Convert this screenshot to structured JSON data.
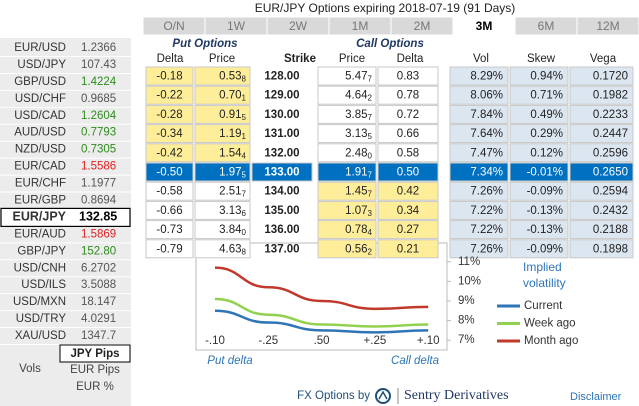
{
  "title": "EUR/JPY Options expiring 2018-07-19 (91 Days)",
  "tabs": [
    "O/N",
    "1W",
    "2W",
    "1M",
    "2M",
    "3M",
    "6M",
    "12M"
  ],
  "selected_tab": 5,
  "pairs": [
    {
      "name": "EUR/USD",
      "rate": "1.2366",
      "color": "#555555"
    },
    {
      "name": "USD/JPY",
      "rate": "107.43",
      "color": "#555555"
    },
    {
      "name": "GBP/USD",
      "rate": "1.4224",
      "color": "#2e8b1e"
    },
    {
      "name": "USD/CHF",
      "rate": "0.9685",
      "color": "#555555"
    },
    {
      "name": "USD/CAD",
      "rate": "1.2604",
      "color": "#2e8b1e"
    },
    {
      "name": "AUD/USD",
      "rate": "0.7793",
      "color": "#2e8b1e"
    },
    {
      "name": "NZD/USD",
      "rate": "0.7305",
      "color": "#2e8b1e"
    },
    {
      "name": "EUR/CAD",
      "rate": "1.5586",
      "color": "#e02020"
    },
    {
      "name": "EUR/CHF",
      "rate": "1.1977",
      "color": "#555555"
    },
    {
      "name": "EUR/GBP",
      "rate": "0.8694",
      "color": "#555555"
    },
    {
      "name": "EUR/JPY",
      "rate": "132.85",
      "color": "#000000"
    },
    {
      "name": "EUR/AUD",
      "rate": "1.5869",
      "color": "#e02020"
    },
    {
      "name": "GBP/JPY",
      "rate": "152.80",
      "color": "#2e8b1e"
    },
    {
      "name": "USD/CNH",
      "rate": "6.2702",
      "color": "#555555"
    },
    {
      "name": "USD/ILS",
      "rate": "3.5088",
      "color": "#555555"
    },
    {
      "name": "USD/MXN",
      "rate": "18.147",
      "color": "#555555"
    },
    {
      "name": "USD/TRY",
      "rate": "4.0291",
      "color": "#555555"
    },
    {
      "name": "XAU/USD",
      "rate": "1347.7",
      "color": "#555555"
    }
  ],
  "selected_pair": 10,
  "modes": {
    "pips": "JPY Pips",
    "vols": "Vols",
    "options": [
      "EUR Pips",
      "EUR %"
    ]
  },
  "table": {
    "put_header": "Put Options",
    "call_header": "Call Options",
    "columns": [
      "Delta",
      "Price",
      "Strike",
      "Price",
      "Delta",
      "Vol",
      "Skew",
      "Vega"
    ],
    "atm_row": 5,
    "rows": [
      [
        "-0.18",
        "0.53",
        "8",
        "128.00",
        "5.47",
        "7",
        "0.83",
        "8.29%",
        "0.94%",
        "0.1720"
      ],
      [
        "-0.22",
        "0.70",
        "1",
        "129.00",
        "4.64",
        "2",
        "0.78",
        "8.06%",
        "0.71%",
        "0.1982"
      ],
      [
        "-0.28",
        "0.91",
        "5",
        "130.00",
        "3.85",
        "7",
        "0.72",
        "7.84%",
        "0.49%",
        "0.2233"
      ],
      [
        "-0.34",
        "1.19",
        "1",
        "131.00",
        "3.13",
        "5",
        "0.66",
        "7.64%",
        "0.29%",
        "0.2447"
      ],
      [
        "-0.42",
        "1.54",
        "4",
        "132.00",
        "2.48",
        "0",
        "0.58",
        "7.47%",
        "0.12%",
        "0.2596"
      ],
      [
        "-0.50",
        "1.97",
        "5",
        "133.00",
        "1.91",
        "7",
        "0.50",
        "7.34%",
        "-0.01%",
        "0.2650"
      ],
      [
        "-0.58",
        "2.51",
        "7",
        "134.00",
        "1.45",
        "7",
        "0.42",
        "7.26%",
        "-0.09%",
        "0.2594"
      ],
      [
        "-0.66",
        "3.13",
        "6",
        "135.00",
        "1.07",
        "3",
        "0.34",
        "7.22%",
        "-0.13%",
        "0.2432"
      ],
      [
        "-0.73",
        "3.84",
        "0",
        "136.00",
        "0.78",
        "4",
        "0.27",
        "7.22%",
        "-0.13%",
        "0.2188"
      ],
      [
        "-0.79",
        "4.63",
        "8",
        "137.00",
        "0.56",
        "2",
        "0.21",
        "7.26%",
        "-0.09%",
        "0.1898"
      ]
    ]
  },
  "chart_data": {
    "type": "line",
    "title": "Implied volatility",
    "categories": [
      "-.10",
      "-.25",
      ".50",
      "+.25",
      "+.10"
    ],
    "x_labels": [
      "Put delta",
      "Call delta"
    ],
    "series": [
      {
        "name": "Current",
        "color": "#2e75b6",
        "values": [
          8.5,
          7.9,
          7.5,
          7.4,
          7.5
        ]
      },
      {
        "name": "Week ago",
        "color": "#92d050",
        "values": [
          9.1,
          8.3,
          7.8,
          7.7,
          7.8
        ]
      },
      {
        "name": "Month ago",
        "color": "#c0392b",
        "values": [
          10.7,
          9.7,
          9.0,
          8.6,
          8.7
        ]
      }
    ],
    "ylim": [
      6.6,
      11.5
    ],
    "yticks": [
      {
        "value": 7,
        "label": "7%"
      },
      {
        "value": 8,
        "label": "8%"
      },
      {
        "value": 9,
        "label": "9%"
      },
      {
        "value": 10,
        "label": "10%"
      },
      {
        "value": 11,
        "label": "11%"
      }
    ],
    "grid": false
  },
  "footer": {
    "by": "FX Options by",
    "brand": "Sentry Derivatives",
    "disclaimer": "Disclaimer"
  }
}
